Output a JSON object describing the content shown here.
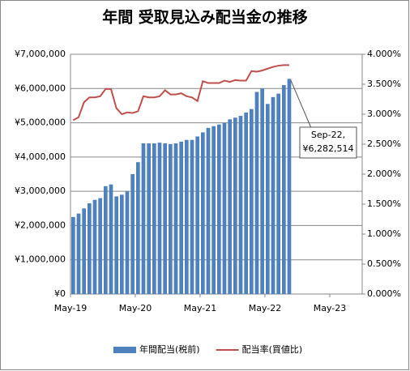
{
  "chart_data": {
    "type": "bar-line",
    "title": "年間 受取見込み配当金の推移",
    "x": [
      "2019-05",
      "2019-06",
      "2019-07",
      "2019-08",
      "2019-09",
      "2019-10",
      "2019-11",
      "2019-12",
      "2020-01",
      "2020-02",
      "2020-03",
      "2020-04",
      "2020-05",
      "2020-06",
      "2020-07",
      "2020-08",
      "2020-09",
      "2020-10",
      "2020-11",
      "2020-12",
      "2021-01",
      "2021-02",
      "2021-03",
      "2021-04",
      "2021-05",
      "2021-06",
      "2021-07",
      "2021-08",
      "2021-09",
      "2021-10",
      "2021-11",
      "2021-12",
      "2022-01",
      "2022-02",
      "2022-03",
      "2022-04",
      "2022-05",
      "2022-06",
      "2022-07",
      "2022-08",
      "2022-09"
    ],
    "xlim": [
      "2019-05",
      "2023-11"
    ],
    "xticks": [
      {
        "value": "2019-05",
        "label": "May-19"
      },
      {
        "value": "2020-05",
        "label": "May-20"
      },
      {
        "value": "2021-05",
        "label": "May-21"
      },
      {
        "value": "2022-05",
        "label": "May-22"
      },
      {
        "value": "2023-05",
        "label": "May-23"
      }
    ],
    "series": [
      {
        "name": "年間配当(税前)",
        "color": "#4f81bd",
        "kind": "bar",
        "values": [
          2250000,
          2350000,
          2500000,
          2650000,
          2750000,
          2800000,
          3150000,
          3200000,
          2850000,
          2900000,
          3000000,
          3500000,
          3850000,
          4400000,
          4400000,
          4400000,
          4420000,
          4400000,
          4380000,
          4400000,
          4450000,
          4500000,
          4500000,
          4600000,
          4720000,
          4850000,
          4900000,
          4950000,
          5000000,
          5100000,
          5150000,
          5200000,
          5300000,
          5400000,
          5900000,
          6000000,
          5550000,
          5750000,
          5850000,
          6100000,
          6282514
        ]
      },
      {
        "name": "配当率(買値比)",
        "color": "#c0504d",
        "kind": "line",
        "axis": "y2",
        "values": [
          2.9,
          2.95,
          3.2,
          3.28,
          3.28,
          3.3,
          3.42,
          3.42,
          3.1,
          3.0,
          3.03,
          3.02,
          3.05,
          3.3,
          3.28,
          3.28,
          3.3,
          3.4,
          3.33,
          3.33,
          3.35,
          3.3,
          3.28,
          3.22,
          3.55,
          3.52,
          3.52,
          3.52,
          3.56,
          3.54,
          3.57,
          3.56,
          3.56,
          3.72,
          3.71,
          3.73,
          3.76,
          3.79,
          3.81,
          3.82,
          3.82
        ]
      }
    ],
    "ylim": [
      0,
      7000000
    ],
    "yticks": [
      {
        "value": 0,
        "label": "¥0"
      },
      {
        "value": 1000000,
        "label": "¥1,000,000"
      },
      {
        "value": 2000000,
        "label": "¥2,000,000"
      },
      {
        "value": 3000000,
        "label": "¥3,000,000"
      },
      {
        "value": 4000000,
        "label": "¥4,000,000"
      },
      {
        "value": 5000000,
        "label": "¥5,000,000"
      },
      {
        "value": 6000000,
        "label": "¥6,000,000"
      },
      {
        "value": 7000000,
        "label": "¥7,000,000"
      }
    ],
    "y2lim": [
      0,
      4
    ],
    "y2ticks": [
      {
        "value": 0,
        "label": "0.000%"
      },
      {
        "value": 0.5,
        "label": "0.500%"
      },
      {
        "value": 1,
        "label": "1.000%"
      },
      {
        "value": 1.5,
        "label": "1.500%"
      },
      {
        "value": 2,
        "label": "2.000%"
      },
      {
        "value": 2.5,
        "label": "2.500%"
      },
      {
        "value": 3,
        "label": "3.000%"
      },
      {
        "value": 3.5,
        "label": "3.500%"
      },
      {
        "value": 4,
        "label": "4.000%"
      }
    ],
    "grid": true,
    "legend": "bottom",
    "annotation": {
      "lines": [
        "Sep-22,",
        "¥6,282,514"
      ]
    }
  }
}
